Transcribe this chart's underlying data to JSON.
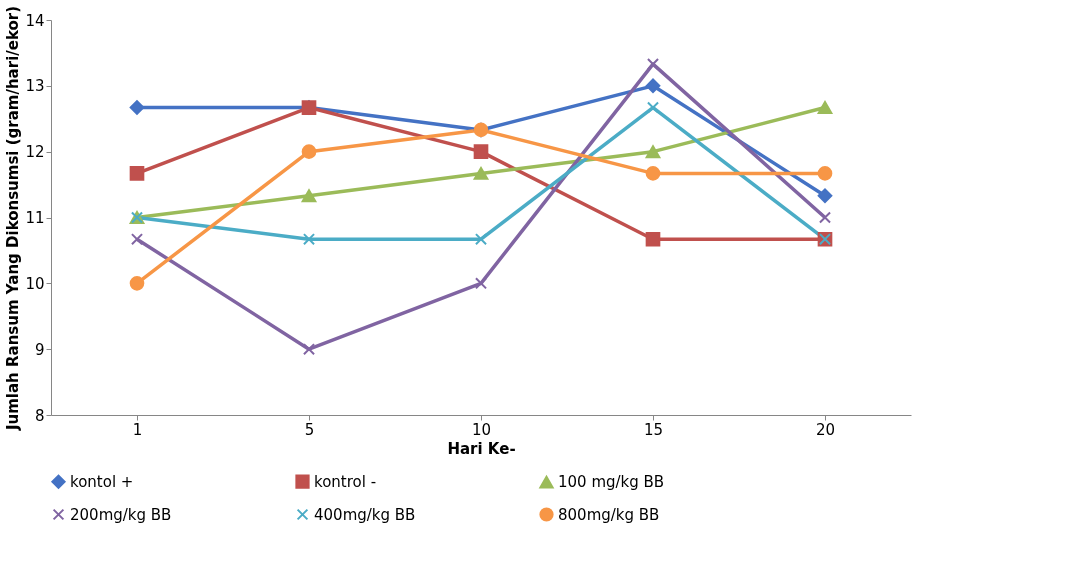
{
  "chart_data": {
    "type": "line",
    "xlabel": "Hari Ke-",
    "ylabel": "Jumlah Ransum Yang Dikonsumsi (gram/hari/ekor)",
    "categories": [
      "1",
      "5",
      "10",
      "15",
      "20"
    ],
    "ylim": [
      8,
      14
    ],
    "yticks": [
      8,
      9,
      10,
      11,
      12,
      13,
      14
    ],
    "grid": false,
    "legend": "bottom",
    "line_style": "solid",
    "series": [
      {
        "name": "kontol +",
        "color": "#4472c4",
        "marker": "diamond",
        "values": [
          12.67,
          12.67,
          12.33,
          13.0,
          11.33
        ]
      },
      {
        "name": "kontrol -",
        "color": "#c0504d",
        "marker": "square",
        "values": [
          11.67,
          12.67,
          12.0,
          10.67,
          10.67
        ]
      },
      {
        "name": "100 mg/kg BB",
        "color": "#9bbb59",
        "marker": "triangle",
        "values": [
          11.0,
          11.33,
          11.67,
          12.0,
          12.67
        ]
      },
      {
        "name": "200mg/kg BB",
        "color": "#8064a2",
        "marker": "cross",
        "values": [
          10.67,
          9.0,
          10.0,
          13.33,
          11.0
        ]
      },
      {
        "name": "400mg/kg BB",
        "color": "#4bacc6",
        "marker": "cross",
        "values": [
          11.0,
          10.67,
          10.67,
          12.67,
          10.67
        ]
      },
      {
        "name": "800mg/kg BB",
        "color": "#f79646",
        "marker": "circle",
        "values": [
          10.0,
          12.0,
          12.33,
          11.67,
          11.67
        ]
      }
    ]
  }
}
